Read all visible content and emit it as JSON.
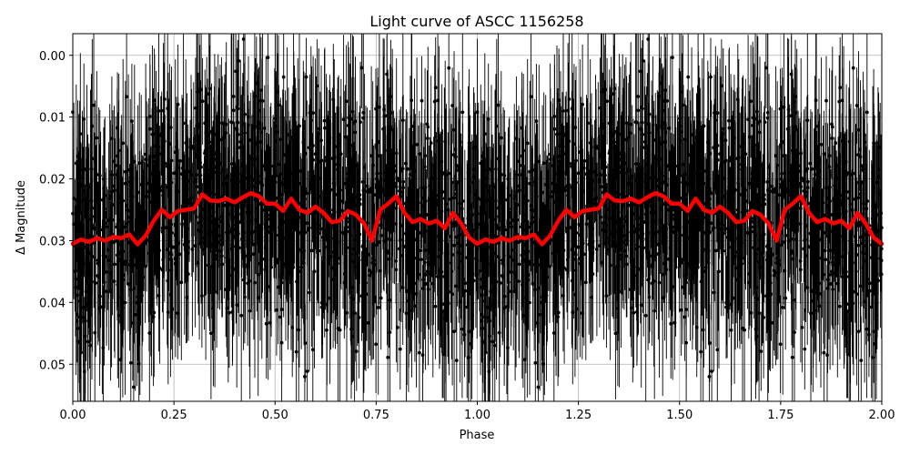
{
  "chart_data": {
    "type": "scatter",
    "title": "Light curve of ASCC 1156258",
    "xlabel": "Phase",
    "ylabel": "Δ Magnitude",
    "xlim": [
      0.0,
      2.0
    ],
    "ylim": [
      0.056,
      -0.0035
    ],
    "y_inverted": true,
    "grid": true,
    "xticks": [
      0.0,
      0.25,
      0.5,
      0.75,
      1.0,
      1.25,
      1.5,
      1.75,
      2.0
    ],
    "xtick_labels": [
      "0.00",
      "0.25",
      "0.50",
      "0.75",
      "1.00",
      "1.25",
      "1.50",
      "1.75",
      "2.00"
    ],
    "yticks": [
      0.0,
      0.01,
      0.02,
      0.03,
      0.04,
      0.05
    ],
    "ytick_labels": [
      "0.00",
      "0.01",
      "0.02",
      "0.03",
      "0.04",
      "0.05"
    ],
    "series": [
      {
        "kind": "errorbar-points",
        "color": "#000000",
        "description_values": "dense observations phase-folded and repeated over two cycles; magnitudes scatter roughly 0.00 to 0.055 around the mean curve, error bars about ±0.012",
        "scatter_sigma": 0.0085,
        "error_halfwidth": [
          0.006,
          0.016
        ]
      },
      {
        "kind": "binned-mean-line",
        "color": "#ff0000",
        "x": [
          0.0,
          0.02,
          0.04,
          0.06,
          0.08,
          0.1,
          0.12,
          0.14,
          0.16,
          0.18,
          0.2,
          0.22,
          0.24,
          0.26,
          0.28,
          0.3,
          0.32,
          0.34,
          0.36,
          0.38,
          0.4,
          0.42,
          0.44,
          0.46,
          0.48,
          0.5,
          0.52,
          0.54,
          0.56,
          0.58,
          0.6,
          0.62,
          0.64,
          0.66,
          0.68,
          0.7,
          0.72,
          0.74,
          0.76,
          0.78,
          0.8,
          0.82,
          0.84,
          0.86,
          0.88,
          0.9,
          0.92,
          0.94,
          0.96,
          0.98,
          1.0
        ],
        "y": [
          0.0305,
          0.0298,
          0.0302,
          0.0296,
          0.03,
          0.0294,
          0.0296,
          0.029,
          0.0306,
          0.0292,
          0.0268,
          0.025,
          0.0262,
          0.0252,
          0.025,
          0.0248,
          0.0225,
          0.0235,
          0.0236,
          0.0232,
          0.0238,
          0.023,
          0.0223,
          0.0228,
          0.024,
          0.024,
          0.0252,
          0.0232,
          0.025,
          0.0255,
          0.0245,
          0.0255,
          0.027,
          0.0268,
          0.0252,
          0.0258,
          0.0272,
          0.03,
          0.025,
          0.024,
          0.0228,
          0.0255,
          0.027,
          0.0265,
          0.0272,
          0.0268,
          0.028,
          0.0255,
          0.0272,
          0.0295,
          0.0305
        ]
      }
    ]
  }
}
